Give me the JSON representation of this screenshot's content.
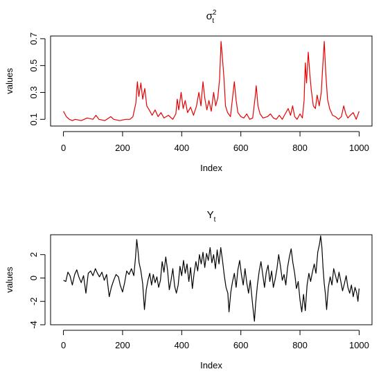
{
  "chart_data": [
    {
      "type": "line",
      "title": "σ",
      "title_sup": "2",
      "title_sub": "t",
      "xlabel": "Index",
      "ylabel": "values",
      "xlim": [
        0,
        1000
      ],
      "ylim": [
        0.05,
        0.72
      ],
      "x_ticks": [
        "0",
        "200",
        "400",
        "600",
        "800",
        "1000"
      ],
      "y_ticks": [
        "0.1",
        "0.3",
        "0.5",
        "0.7"
      ],
      "series": [
        {
          "color": "#e60000",
          "points": [
            [
              0,
              0.16
            ],
            [
              10,
              0.12
            ],
            [
              20,
              0.1
            ],
            [
              30,
              0.09
            ],
            [
              40,
              0.1
            ],
            [
              60,
              0.09
            ],
            [
              80,
              0.11
            ],
            [
              100,
              0.1
            ],
            [
              110,
              0.13
            ],
            [
              120,
              0.1
            ],
            [
              140,
              0.09
            ],
            [
              160,
              0.12
            ],
            [
              170,
              0.1
            ],
            [
              190,
              0.09
            ],
            [
              210,
              0.1
            ],
            [
              225,
              0.1
            ],
            [
              235,
              0.12
            ],
            [
              245,
              0.22
            ],
            [
              250,
              0.38
            ],
            [
              255,
              0.27
            ],
            [
              262,
              0.37
            ],
            [
              268,
              0.25
            ],
            [
              275,
              0.33
            ],
            [
              282,
              0.2
            ],
            [
              290,
              0.17
            ],
            [
              300,
              0.13
            ],
            [
              310,
              0.17
            ],
            [
              320,
              0.12
            ],
            [
              330,
              0.15
            ],
            [
              340,
              0.11
            ],
            [
              355,
              0.13
            ],
            [
              370,
              0.1
            ],
            [
              380,
              0.14
            ],
            [
              385,
              0.25
            ],
            [
              390,
              0.17
            ],
            [
              398,
              0.3
            ],
            [
              405,
              0.18
            ],
            [
              412,
              0.24
            ],
            [
              420,
              0.15
            ],
            [
              430,
              0.19
            ],
            [
              440,
              0.13
            ],
            [
              450,
              0.2
            ],
            [
              458,
              0.3
            ],
            [
              465,
              0.2
            ],
            [
              472,
              0.38
            ],
            [
              478,
              0.26
            ],
            [
              485,
              0.17
            ],
            [
              492,
              0.24
            ],
            [
              500,
              0.16
            ],
            [
              508,
              0.3
            ],
            [
              515,
              0.2
            ],
            [
              522,
              0.26
            ],
            [
              528,
              0.4
            ],
            [
              533,
              0.68
            ],
            [
              538,
              0.55
            ],
            [
              543,
              0.4
            ],
            [
              548,
              0.2
            ],
            [
              555,
              0.15
            ],
            [
              565,
              0.12
            ],
            [
              572,
              0.26
            ],
            [
              578,
              0.38
            ],
            [
              584,
              0.24
            ],
            [
              590,
              0.15
            ],
            [
              600,
              0.12
            ],
            [
              610,
              0.11
            ],
            [
              620,
              0.14
            ],
            [
              630,
              0.1
            ],
            [
              640,
              0.11
            ],
            [
              648,
              0.26
            ],
            [
              652,
              0.35
            ],
            [
              658,
              0.2
            ],
            [
              665,
              0.14
            ],
            [
              675,
              0.11
            ],
            [
              690,
              0.12
            ],
            [
              700,
              0.14
            ],
            [
              710,
              0.11
            ],
            [
              720,
              0.1
            ],
            [
              730,
              0.13
            ],
            [
              740,
              0.1
            ],
            [
              750,
              0.14
            ],
            [
              760,
              0.18
            ],
            [
              768,
              0.13
            ],
            [
              775,
              0.2
            ],
            [
              782,
              0.12
            ],
            [
              790,
              0.1
            ],
            [
              800,
              0.14
            ],
            [
              808,
              0.11
            ],
            [
              814,
              0.24
            ],
            [
              818,
              0.52
            ],
            [
              822,
              0.37
            ],
            [
              828,
              0.6
            ],
            [
              833,
              0.44
            ],
            [
              838,
              0.32
            ],
            [
              845,
              0.2
            ],
            [
              852,
              0.18
            ],
            [
              858,
              0.28
            ],
            [
              865,
              0.2
            ],
            [
              872,
              0.3
            ],
            [
              876,
              0.46
            ],
            [
              882,
              0.68
            ],
            [
              887,
              0.45
            ],
            [
              893,
              0.25
            ],
            [
              900,
              0.18
            ],
            [
              910,
              0.13
            ],
            [
              920,
              0.12
            ],
            [
              930,
              0.1
            ],
            [
              940,
              0.12
            ],
            [
              948,
              0.2
            ],
            [
              955,
              0.14
            ],
            [
              962,
              0.11
            ],
            [
              970,
              0.13
            ],
            [
              980,
              0.15
            ],
            [
              990,
              0.1
            ],
            [
              1000,
              0.16
            ]
          ]
        }
      ]
    },
    {
      "type": "line",
      "title": "Y",
      "title_sub": "t",
      "xlabel": "Index",
      "ylabel": "values",
      "xlim": [
        0,
        1000
      ],
      "ylim": [
        -4,
        3.7
      ],
      "x_ticks": [
        "0",
        "200",
        "400",
        "600",
        "800",
        "1000"
      ],
      "y_ticks": [
        "-4",
        "-2",
        "0",
        "2"
      ],
      "series": [
        {
          "color": "#000000",
          "points": [
            [
              0,
              -0.2
            ],
            [
              8,
              -0.3
            ],
            [
              15,
              0.5
            ],
            [
              22,
              0.2
            ],
            [
              30,
              -0.6
            ],
            [
              38,
              0.3
            ],
            [
              45,
              0.7
            ],
            [
              52,
              0.1
            ],
            [
              60,
              -0.4
            ],
            [
              68,
              0.2
            ],
            [
              76,
              -1.3
            ],
            [
              84,
              0.4
            ],
            [
              92,
              0.6
            ],
            [
              100,
              0.2
            ],
            [
              108,
              0.8
            ],
            [
              115,
              0.4
            ],
            [
              122,
              0.1
            ],
            [
              130,
              0.5
            ],
            [
              138,
              -0.2
            ],
            [
              146,
              0.3
            ],
            [
              155,
              -1.6
            ],
            [
              162,
              -0.8
            ],
            [
              170,
              -0.2
            ],
            [
              178,
              0.3
            ],
            [
              186,
              0.1
            ],
            [
              192,
              -0.6
            ],
            [
              200,
              -1.2
            ],
            [
              207,
              -0.4
            ],
            [
              214,
              0.6
            ],
            [
              222,
              0.3
            ],
            [
              230,
              0.8
            ],
            [
              238,
              0.2
            ],
            [
              244,
              1.8
            ],
            [
              248,
              3.3
            ],
            [
              252,
              2.4
            ],
            [
              256,
              1.3
            ],
            [
              262,
              0.6
            ],
            [
              268,
              -0.5
            ],
            [
              274,
              -2.7
            ],
            [
              280,
              -1.0
            ],
            [
              286,
              -0.2
            ],
            [
              292,
              0.4
            ],
            [
              298,
              -0.6
            ],
            [
              304,
              0.3
            ],
            [
              310,
              -0.4
            ],
            [
              316,
              0.1
            ],
            [
              322,
              -0.8
            ],
            [
              328,
              -0.2
            ],
            [
              334,
              1.4
            ],
            [
              340,
              0.5
            ],
            [
              346,
              1.8
            ],
            [
              352,
              0.7
            ],
            [
              358,
              -1.0
            ],
            [
              364,
              -0.2
            ],
            [
              370,
              0.8
            ],
            [
              376,
              -0.7
            ],
            [
              382,
              -1.3
            ],
            [
              388,
              -0.6
            ],
            [
              394,
              1.0
            ],
            [
              400,
              0.2
            ],
            [
              406,
              1.5
            ],
            [
              412,
              0.4
            ],
            [
              418,
              1.2
            ],
            [
              424,
              -0.3
            ],
            [
              430,
              0.9
            ],
            [
              436,
              -0.9
            ],
            [
              442,
              0.4
            ],
            [
              448,
              1.4
            ],
            [
              454,
              0.6
            ],
            [
              460,
              2.0
            ],
            [
              466,
              1.2
            ],
            [
              472,
              2.2
            ],
            [
              478,
              0.9
            ],
            [
              484,
              2.1
            ],
            [
              490,
              1.5
            ],
            [
              496,
              2.6
            ],
            [
              502,
              1.3
            ],
            [
              508,
              2.0
            ],
            [
              514,
              0.8
            ],
            [
              520,
              2.4
            ],
            [
              526,
              1.2
            ],
            [
              532,
              2.6
            ],
            [
              538,
              1.5
            ],
            [
              544,
              0.2
            ],
            [
              550,
              -0.8
            ],
            [
              556,
              -1.3
            ],
            [
              560,
              -2.9
            ],
            [
              566,
              -1.2
            ],
            [
              572,
              -0.3
            ],
            [
              578,
              0.4
            ],
            [
              584,
              -0.8
            ],
            [
              590,
              0.7
            ],
            [
              596,
              1.5
            ],
            [
              602,
              0.3
            ],
            [
              608,
              -0.6
            ],
            [
              614,
              0.8
            ],
            [
              620,
              -0.4
            ],
            [
              626,
              -1.3
            ],
            [
              632,
              -0.2
            ],
            [
              638,
              -1.8
            ],
            [
              642,
              -2.8
            ],
            [
              646,
              -3.7
            ],
            [
              650,
              -2.2
            ],
            [
              656,
              -0.6
            ],
            [
              662,
              0.6
            ],
            [
              668,
              1.4
            ],
            [
              674,
              0.3
            ],
            [
              680,
              -0.8
            ],
            [
              686,
              0.5
            ],
            [
              692,
              1.1
            ],
            [
              698,
              -0.3
            ],
            [
              704,
              0.6
            ],
            [
              710,
              -0.8
            ],
            [
              716,
              -0.1
            ],
            [
              722,
              0.8
            ],
            [
              728,
              2.0
            ],
            [
              734,
              1.0
            ],
            [
              740,
              -0.2
            ],
            [
              746,
              0.3
            ],
            [
              752,
              -0.6
            ],
            [
              758,
              0.9
            ],
            [
              764,
              1.8
            ],
            [
              770,
              2.5
            ],
            [
              776,
              1.3
            ],
            [
              782,
              0.4
            ],
            [
              788,
              -0.9
            ],
            [
              794,
              -0.3
            ],
            [
              800,
              -1.9
            ],
            [
              806,
              -2.9
            ],
            [
              812,
              -1.4
            ],
            [
              818,
              -2.8
            ],
            [
              824,
              -0.6
            ],
            [
              830,
              0.4
            ],
            [
              836,
              -0.3
            ],
            [
              842,
              0.5
            ],
            [
              848,
              1.2
            ],
            [
              854,
              0.4
            ],
            [
              860,
              2.2
            ],
            [
              866,
              2.9
            ],
            [
              870,
              3.6
            ],
            [
              874,
              2.6
            ],
            [
              878,
              0.8
            ],
            [
              882,
              -0.5
            ],
            [
              886,
              -1.4
            ],
            [
              890,
              -2.7
            ],
            [
              896,
              -0.8
            ],
            [
              902,
              0.1
            ],
            [
              908,
              -0.6
            ],
            [
              914,
              0.8
            ],
            [
              920,
              0.2
            ],
            [
              926,
              -0.4
            ],
            [
              932,
              0.5
            ],
            [
              938,
              -0.3
            ],
            [
              944,
              -1.1
            ],
            [
              950,
              -0.5
            ],
            [
              956,
              0.2
            ],
            [
              962,
              -0.8
            ],
            [
              968,
              -1.3
            ],
            [
              974,
              -0.6
            ],
            [
              980,
              -1.6
            ],
            [
              986,
              -0.8
            ],
            [
              992,
              -1.3
            ],
            [
              996,
              -2.0
            ],
            [
              1000,
              -0.9
            ]
          ]
        }
      ]
    }
  ]
}
